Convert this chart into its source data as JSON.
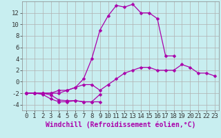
{
  "background_color": "#c8eef0",
  "grid_color": "#b0b0b0",
  "line_color": "#aa00aa",
  "marker": "D",
  "marker_size": 2.5,
  "x": [
    0,
    1,
    2,
    3,
    4,
    5,
    6,
    7,
    8,
    9,
    10,
    11,
    12,
    13,
    14,
    15,
    16,
    17,
    18,
    19,
    20,
    21,
    22,
    23
  ],
  "series1": [
    -2,
    -2,
    -2,
    -2.3,
    -3.2,
    -3.3,
    -3.3,
    -3.5,
    -3.5,
    -3.5,
    null,
    null,
    null,
    null,
    null,
    null,
    null,
    null,
    null,
    null,
    null,
    null,
    null,
    null
  ],
  "series2": [
    -2,
    -2,
    -2.2,
    -3,
    -3.5,
    -3.5,
    -3.3,
    -3.5,
    -3.5,
    -2.2,
    null,
    null,
    null,
    null,
    null,
    null,
    null,
    null,
    null,
    null,
    null,
    null,
    null,
    null
  ],
  "series3": [
    -2,
    -2,
    -2,
    -2,
    -1.5,
    -1.5,
    -1,
    -0.5,
    -0.5,
    -1.5,
    -0.5,
    0.5,
    1.5,
    2,
    2.5,
    2.5,
    2,
    2,
    2,
    3,
    2.5,
    1.5,
    1.5,
    1
  ],
  "series4": [
    -2,
    -2,
    -2,
    -2,
    -2,
    -1.5,
    -1,
    0.5,
    4,
    9,
    11.5,
    13.3,
    13,
    13.5,
    12,
    12,
    11,
    4.5,
    4.5,
    null,
    null,
    null,
    null,
    null
  ],
  "xlim": [
    -0.5,
    23.5
  ],
  "ylim": [
    -5,
    14
  ],
  "yticks": [
    -4,
    -2,
    0,
    2,
    4,
    6,
    8,
    10,
    12
  ],
  "xticks": [
    0,
    1,
    2,
    3,
    4,
    5,
    6,
    7,
    8,
    9,
    10,
    11,
    12,
    13,
    14,
    15,
    16,
    17,
    18,
    19,
    20,
    21,
    22,
    23
  ],
  "xlabel": "Windchill (Refroidissement éolien,°C)",
  "xlabel_fontsize": 7,
  "tick_fontsize": 6.5,
  "linewidth": 0.9
}
